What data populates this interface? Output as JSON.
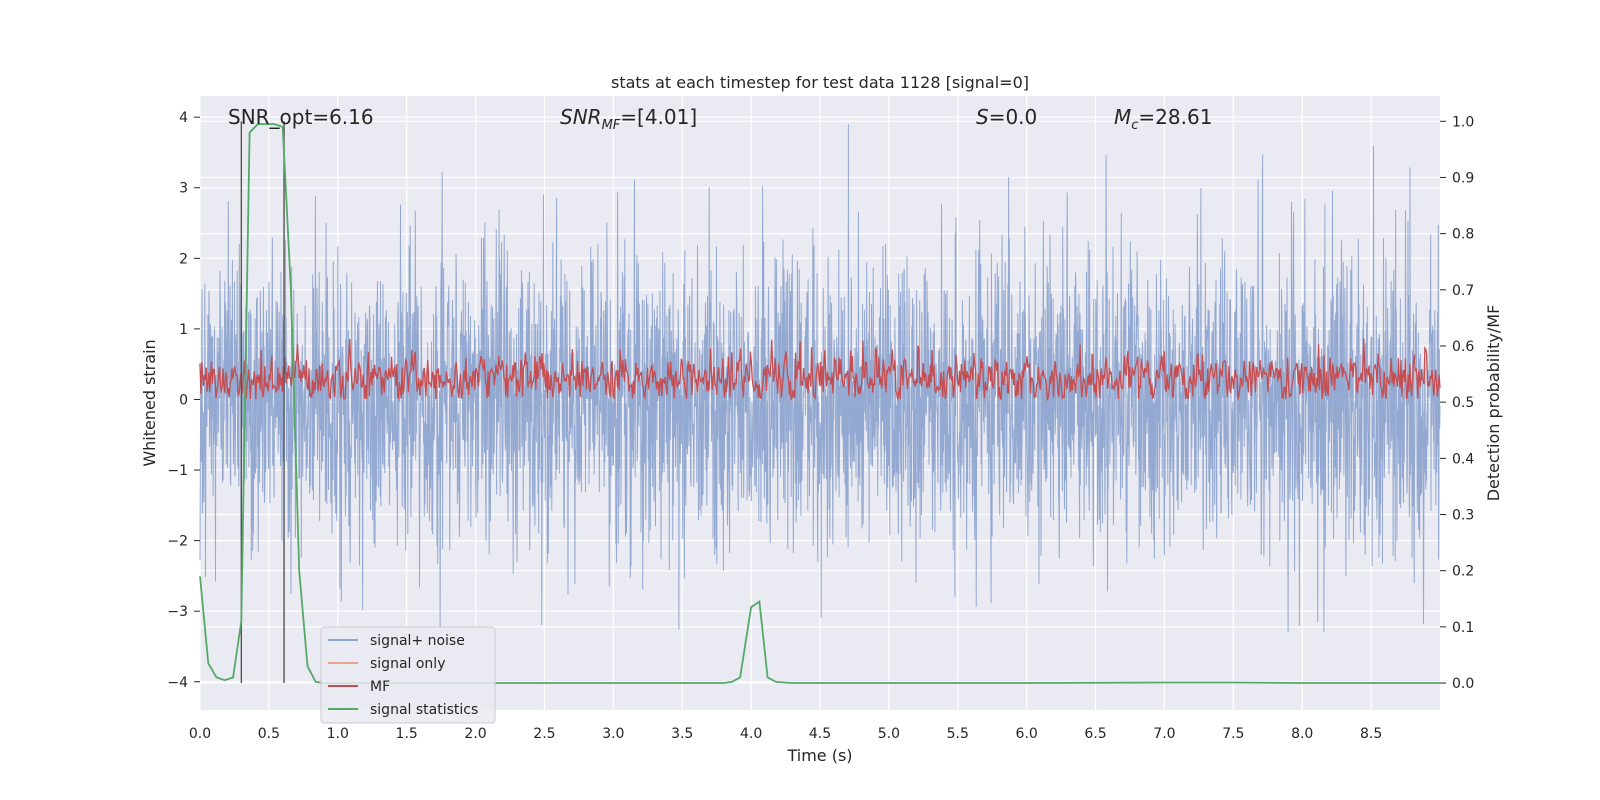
{
  "chart_data": {
    "type": "line",
    "title": "stats at each timestep for test data 1128 [signal=0]",
    "xlabel": "Time (s)",
    "ylabel": "Whitened strain",
    "y2label": "Detection probability/MF",
    "xlim": [
      0.0,
      9.0
    ],
    "ylim": [
      -4.4,
      4.3
    ],
    "y2lim": [
      -0.048,
      1.045
    ],
    "xticks": [
      "0.0",
      "0.5",
      "1.0",
      "1.5",
      "2.0",
      "2.5",
      "3.0",
      "3.5",
      "4.0",
      "4.5",
      "5.0",
      "5.5",
      "6.0",
      "6.5",
      "7.0",
      "7.5",
      "8.0",
      "8.5"
    ],
    "yticks": [
      "4",
      "3",
      "2",
      "1",
      "0",
      "−1",
      "−2",
      "−3",
      "−4"
    ],
    "y2ticks": [
      "1.0",
      "0.9",
      "0.8",
      "0.7",
      "0.6",
      "0.5",
      "0.4",
      "0.3",
      "0.2",
      "0.1",
      "0.0"
    ],
    "grid": true,
    "legend_position": "lower-left",
    "annotations": {
      "snr_opt": "SNR_opt=6.16",
      "snr_mf_sym": "SNR",
      "snr_mf_sub": "MF",
      "snr_mf_val": "=[4.01]",
      "s_sym": "S",
      "s_val": "=0.0",
      "mc_sym": "M",
      "mc_sub": "c",
      "mc_val": "=28.61"
    },
    "vertical_lines_x": [
      0.3,
      0.61
    ],
    "series": [
      {
        "name": "signal+ noise",
        "color": "#8fa5cf",
        "axis": "left",
        "kind": "noise",
        "amplitude_envelope": [
          -3.3,
          3.9
        ]
      },
      {
        "name": "signal only",
        "color": "#e8a58c",
        "axis": "left",
        "kind": "empty"
      },
      {
        "name": "MF",
        "color": "#c44e52",
        "axis": "left",
        "kind": "band",
        "y_range": [
          0.0,
          1.0
        ]
      },
      {
        "name": "signal statistics",
        "color": "#55a868",
        "axis": "right",
        "x": [
          0.0,
          0.06,
          0.12,
          0.18,
          0.24,
          0.3,
          0.36,
          0.42,
          0.48,
          0.54,
          0.6,
          0.66,
          0.72,
          0.78,
          0.84,
          0.9,
          1.5,
          2.0,
          2.5,
          3.0,
          3.5,
          3.8,
          3.86,
          3.92,
          4.0,
          4.06,
          4.12,
          4.18,
          4.3,
          5.0,
          6.0,
          7.0,
          7.5,
          8.0,
          9.0
        ],
        "y": [
          0.19,
          0.035,
          0.01,
          0.005,
          0.01,
          0.11,
          0.98,
          0.995,
          0.995,
          0.995,
          0.99,
          0.7,
          0.2,
          0.03,
          0.002,
          0.0,
          0.0,
          0.0,
          0.0,
          0.0,
          0.0,
          0.0,
          0.002,
          0.01,
          0.135,
          0.145,
          0.01,
          0.002,
          0.0,
          0.0,
          0.0,
          0.001,
          0.001,
          0.0,
          0.0
        ]
      }
    ]
  }
}
